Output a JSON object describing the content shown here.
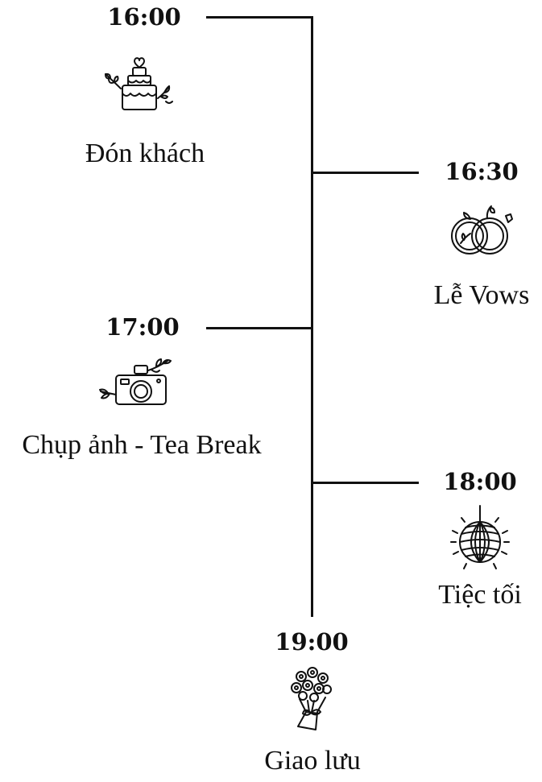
{
  "timeline": {
    "events": [
      {
        "time": "16:00",
        "label": "Đón khách",
        "icon": "wedding-cake-icon"
      },
      {
        "time": "16:30",
        "label": "Lễ Vows",
        "icon": "wedding-rings-icon"
      },
      {
        "time": "17:00",
        "label": "Chụp ảnh - Tea Break",
        "icon": "camera-icon"
      },
      {
        "time": "18:00",
        "label": "Tiệc tối",
        "icon": "disco-ball-icon"
      },
      {
        "time": "19:00",
        "label": "Giao lưu",
        "icon": "flower-bouquet-icon"
      }
    ]
  }
}
